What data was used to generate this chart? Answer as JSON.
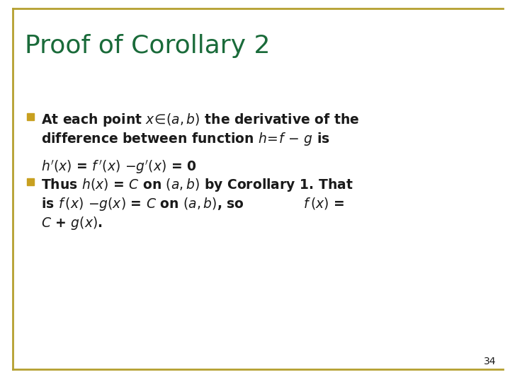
{
  "title": "Proof of Corollary 2",
  "title_color": "#1a6b3a",
  "title_fontsize": 26,
  "background_color": "#ffffff",
  "border_color": "#b5a030",
  "bullet_color": "#c8a020",
  "text_color": "#1a1a1a",
  "page_number": "34",
  "fig_width": 7.2,
  "fig_height": 5.4,
  "dpi": 100
}
